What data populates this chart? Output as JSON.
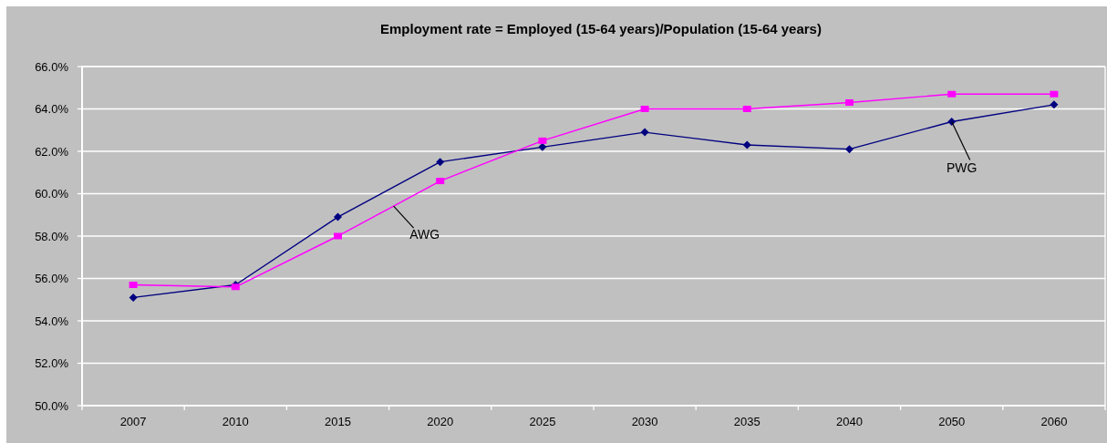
{
  "chart_data": {
    "type": "line",
    "title": "Employment rate = Employed (15-64 years)/Population (15-64 years)",
    "categories": [
      "2007",
      "2010",
      "2015",
      "2020",
      "2025",
      "2030",
      "2035",
      "2040",
      "2050",
      "2060"
    ],
    "series": [
      {
        "name": "PWG",
        "color": "#000080",
        "marker": "diamond",
        "values": [
          55.1,
          55.7,
          58.9,
          61.5,
          62.2,
          62.9,
          62.3,
          62.1,
          63.4,
          64.2
        ]
      },
      {
        "name": "AWG",
        "color": "#ff00ff",
        "marker": "square",
        "values": [
          55.7,
          55.6,
          58.0,
          60.6,
          62.5,
          64.0,
          64.0,
          64.3,
          64.7,
          64.7
        ]
      }
    ],
    "ylim": [
      50,
      66
    ],
    "yticks": [
      {
        "value": 50,
        "label": "50.0%"
      },
      {
        "value": 52,
        "label": "52.0%"
      },
      {
        "value": 54,
        "label": "54.0%"
      },
      {
        "value": 56,
        "label": "56.0%"
      },
      {
        "value": 58,
        "label": "58.0%"
      },
      {
        "value": 60,
        "label": "60.0%"
      },
      {
        "value": 62,
        "label": "62.0%"
      },
      {
        "value": 64,
        "label": "64.0%"
      },
      {
        "value": 66,
        "label": "66.0%"
      }
    ],
    "grid": "y"
  }
}
